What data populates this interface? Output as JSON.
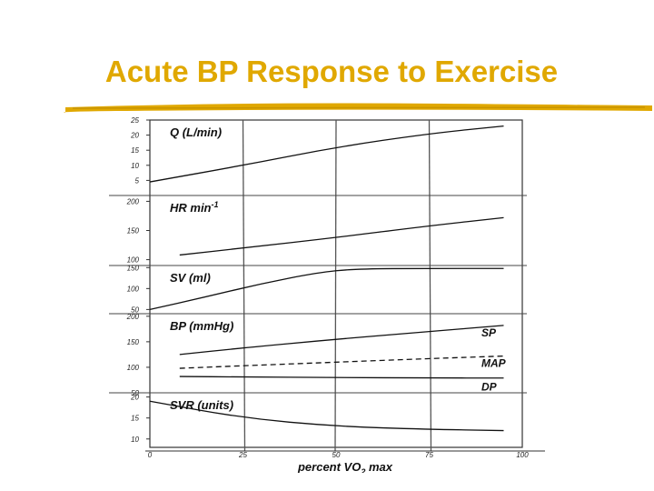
{
  "slide": {
    "title": "Acute BP Response to Exercise",
    "title_color": "#e0a800"
  },
  "chart_data": {
    "type": "line",
    "x_range": [
      0,
      100
    ],
    "x_ticks": [
      "0",
      "25",
      "50",
      "75",
      "100"
    ],
    "x_tick_values": [
      0,
      25,
      50,
      75,
      100
    ],
    "xlabel": "percent VO2 max",
    "xlabel_sub": "2",
    "xlabel_main": "percent VO",
    "xlabel_suffix": " max",
    "grid": true,
    "panels": [
      {
        "id": "q",
        "label": "Q (L/min)",
        "ylim": [
          0,
          25
        ],
        "ticks": [
          5,
          10,
          15,
          20,
          25
        ],
        "series": [
          {
            "x": [
              0,
              25,
              50,
              75,
              95
            ],
            "y": [
              4.5,
              10,
              16,
              20.5,
              23
            ]
          }
        ]
      },
      {
        "id": "hr",
        "label": "HR min",
        "label_sup": "-1",
        "ylim": [
          90,
          210
        ],
        "ticks": [
          100,
          150,
          200
        ],
        "series": [
          {
            "x": [
              8,
              25,
              50,
              75,
              95
            ],
            "y": [
              108,
              120,
              138,
              158,
              172
            ]
          }
        ]
      },
      {
        "id": "sv",
        "label": "SV (ml)",
        "ylim": [
          40,
          155
        ],
        "ticks": [
          50,
          100,
          150
        ],
        "series": [
          {
            "x": [
              0,
              15,
              30,
              45,
              55,
              75,
              95
            ],
            "y": [
              50,
              80,
              112,
              138,
              147,
              148,
              148
            ]
          }
        ]
      },
      {
        "id": "bp",
        "label": "BP (mmHg)",
        "ylim": [
          50,
          205
        ],
        "ticks": [
          50,
          100,
          150,
          200
        ],
        "series": [
          {
            "name": "SP",
            "style": "solid",
            "x": [
              8,
              25,
              50,
              75,
              95
            ],
            "y": [
              125,
              138,
              155,
              170,
              182
            ]
          },
          {
            "name": "MAP",
            "style": "dashed",
            "x": [
              8,
              25,
              50,
              75,
              95
            ],
            "y": [
              98,
              103,
              110,
              117,
              122
            ]
          },
          {
            "name": "DP",
            "style": "solid",
            "x": [
              8,
              25,
              50,
              75,
              95
            ],
            "y": [
              82,
              81,
              80,
              79,
              79
            ]
          }
        ]
      },
      {
        "id": "svr",
        "label": "SVR (units)",
        "ylim": [
          8,
          21
        ],
        "ticks": [
          10,
          15,
          20
        ],
        "series": [
          {
            "x": [
              0,
              25,
              50,
              75,
              95
            ],
            "y": [
              19,
              15,
              13,
              12.3,
              12
            ]
          }
        ]
      }
    ]
  }
}
